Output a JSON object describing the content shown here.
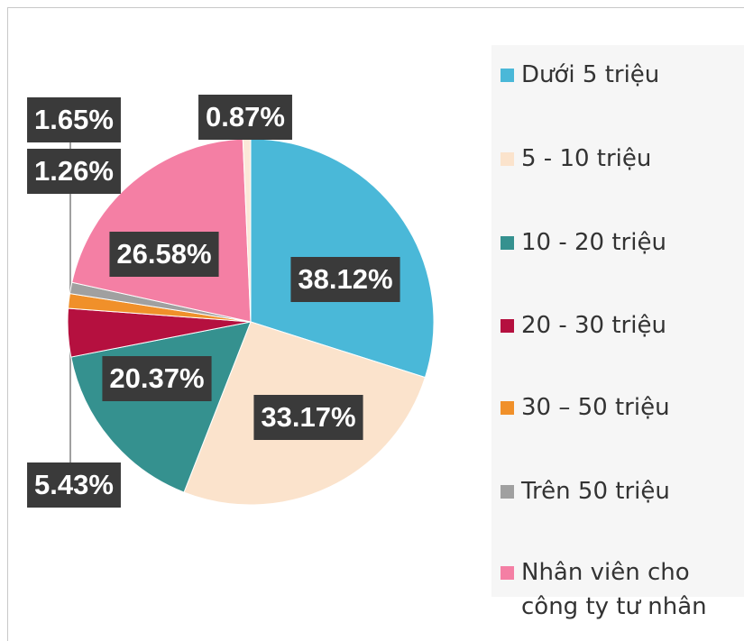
{
  "chart_data": {
    "type": "pie",
    "categories": [
      "Dưới 5 triệu",
      "5 - 10 triệu",
      "10 - 20 triệu",
      "20 - 30 triệu",
      "30 – 50 triệu",
      "Trên 50 triệu",
      "Nhân viên cho công ty tư nhân",
      null
    ],
    "values": [
      38.12,
      33.17,
      20.37,
      5.43,
      1.65,
      1.26,
      26.58,
      0.87
    ],
    "value_labels": [
      "38.12%",
      "33.17%",
      "20.37%",
      "5.43%",
      "1.65%",
      "1.26%",
      "26.58%",
      "0.87%"
    ],
    "colors": [
      "#4ab8d8",
      "#fbe3cc",
      "#35918f",
      "#b5103f",
      "#f0902a",
      "#a0a0a0",
      "#f47fa4",
      "#fbe8d8"
    ],
    "legend": "right"
  }
}
